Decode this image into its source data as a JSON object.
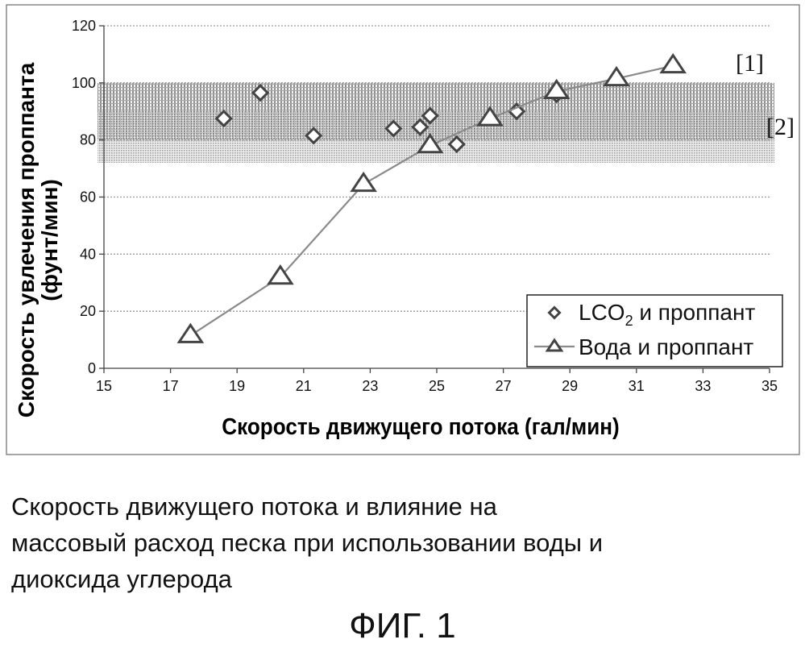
{
  "chart_data": {
    "type": "scatter",
    "xlabel": "Скорость движущего потока (гал/мин)",
    "ylabel": [
      "Скорость увлечения проппанта",
      "(фунт/мин)"
    ],
    "xlim": [
      15,
      35
    ],
    "ylim": [
      0,
      120
    ],
    "x_ticks": [
      15,
      17,
      19,
      21,
      23,
      25,
      27,
      29,
      31,
      33,
      35
    ],
    "y_ticks": [
      0,
      20,
      40,
      60,
      80,
      100,
      120
    ],
    "grid": "horizontal",
    "legend_position": "bottom-right",
    "bands": [
      {
        "label": "[1]",
        "y_from": 80,
        "y_to": 100,
        "pattern": "grid",
        "color": "#5a5a5a"
      },
      {
        "label": "[2]",
        "y_from": 72,
        "y_to": 90,
        "pattern": "dots",
        "color": "#5a5a5a"
      }
    ],
    "series": [
      {
        "name": "LCO₂ и проппант",
        "name_main": "LCO",
        "name_sub": "2",
        "name_rest": " и проппант",
        "marker": "diamond",
        "line": false,
        "points": [
          {
            "x": 18.6,
            "y": 87.5
          },
          {
            "x": 19.7,
            "y": 96.5
          },
          {
            "x": 21.3,
            "y": 81.5
          },
          {
            "x": 23.7,
            "y": 84.0
          },
          {
            "x": 24.5,
            "y": 84.5
          },
          {
            "x": 24.8,
            "y": 88.5
          },
          {
            "x": 25.6,
            "y": 78.5
          },
          {
            "x": 27.4,
            "y": 90.0
          },
          {
            "x": 28.6,
            "y": 96.0
          }
        ]
      },
      {
        "name": "Вода и проппант",
        "marker": "triangle",
        "line": true,
        "points": [
          {
            "x": 17.6,
            "y": 11.5
          },
          {
            "x": 20.3,
            "y": 32.0
          },
          {
            "x": 22.8,
            "y": 64.5
          },
          {
            "x": 24.8,
            "y": 78.0
          },
          {
            "x": 26.6,
            "y": 87.5
          },
          {
            "x": 28.6,
            "y": 97.0
          },
          {
            "x": 30.4,
            "y": 101.5
          },
          {
            "x": 32.1,
            "y": 106.0
          }
        ]
      }
    ]
  },
  "caption": [
    "Скорость движущего потока и влияние на",
    "массовый расход песка при использовании воды и",
    "диоксида углерода"
  ],
  "figure_label": "ФИГ. 1",
  "colors": {
    "marker_stroke": "#444444",
    "series_line": "#8a8a8a",
    "gridline": "#9a9a9a",
    "band": "#5a5a5a"
  }
}
